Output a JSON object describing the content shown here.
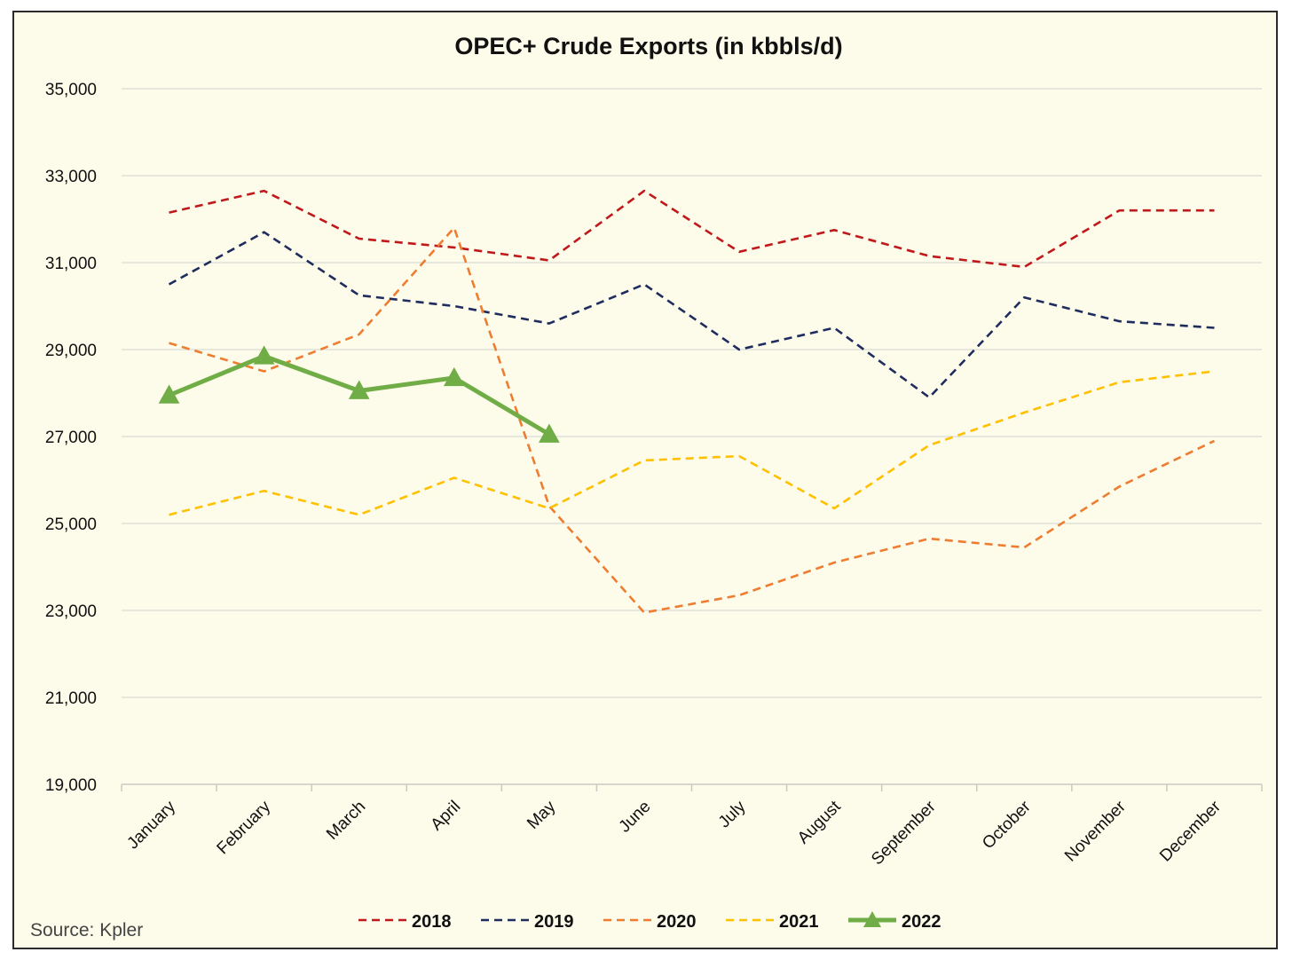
{
  "chart_data": {
    "type": "line",
    "title": "OPEC+ Crude Exports (in kbbls/d)",
    "xlabel": "",
    "ylabel": "",
    "source": "Source: Kpler",
    "ylim": [
      19000,
      35000
    ],
    "yticks": [
      19000,
      21000,
      23000,
      25000,
      27000,
      29000,
      31000,
      33000,
      35000
    ],
    "ytick_labels": [
      "19,000",
      "21,000",
      "23,000",
      "25,000",
      "27,000",
      "29,000",
      "31,000",
      "33,000",
      "35,000"
    ],
    "grid": true,
    "legend_position": "bottom",
    "categories": [
      "January",
      "February",
      "March",
      "April",
      "May",
      "June",
      "July",
      "August",
      "September",
      "October",
      "November",
      "December"
    ],
    "series": [
      {
        "name": "2018",
        "color": "#c0191c",
        "style": "dashed",
        "marker": "none",
        "values": [
          32150,
          32650,
          31550,
          31350,
          31050,
          32650,
          31250,
          31750,
          31150,
          30900,
          32200,
          32200
        ]
      },
      {
        "name": "2019",
        "color": "#1f2d5e",
        "style": "dashed",
        "marker": "none",
        "values": [
          30500,
          31700,
          30250,
          30000,
          29600,
          30500,
          29000,
          29500,
          27900,
          30200,
          29650,
          29500
        ]
      },
      {
        "name": "2020",
        "color": "#ed7d31",
        "style": "dashed",
        "marker": "none",
        "values": [
          29150,
          28500,
          29350,
          31800,
          25400,
          22950,
          23350,
          24100,
          24650,
          24450,
          25850,
          26900
        ]
      },
      {
        "name": "2021",
        "color": "#ffc000",
        "style": "dashed",
        "marker": "none",
        "values": [
          25200,
          25750,
          25200,
          26050,
          25350,
          26450,
          26550,
          25350,
          26800,
          27550,
          28250,
          28500
        ]
      },
      {
        "name": "2022",
        "color": "#70ad47",
        "style": "solid",
        "marker": "triangle",
        "values": [
          27950,
          28850,
          28050,
          28350,
          27050,
          null,
          null,
          null,
          null,
          null,
          null,
          null
        ]
      }
    ]
  }
}
